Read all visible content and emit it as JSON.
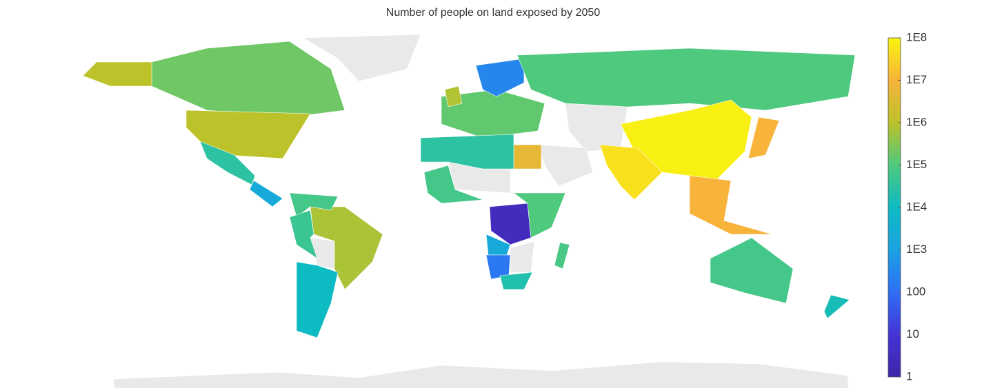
{
  "chart_data": {
    "type": "choropleth",
    "title": "Number of people on land exposed by 2050",
    "log_scale": true,
    "clim": [
      1,
      100000000
    ],
    "ticks": [
      {
        "value": 100000000,
        "label": "1E8"
      },
      {
        "value": 10000000,
        "label": "1E7"
      },
      {
        "value": 1000000,
        "label": "1E6"
      },
      {
        "value": 100000,
        "label": "1E5"
      },
      {
        "value": 10000,
        "label": "1E4"
      },
      {
        "value": 1000,
        "label": "1E3"
      },
      100,
      10,
      1
    ],
    "colormap": [
      "#3e26a8",
      "#4433d6",
      "#2f6ff5",
      "#1ba2e3",
      "#0dbbc3",
      "#4fc97e",
      "#bcc22a",
      "#f7b33a",
      "#f8f50f"
    ],
    "values": [
      200000,
      1000000,
      1000000,
      30000,
      2000,
      700000,
      70000,
      50000,
      10000,
      150000,
      300,
      100000,
      80000000,
      50000000,
      10000000,
      10000000,
      5000000,
      30000,
      70000,
      3,
      100000,
      2000,
      150,
      20000,
      80000,
      70000,
      15000,
      800000
    ]
  }
}
